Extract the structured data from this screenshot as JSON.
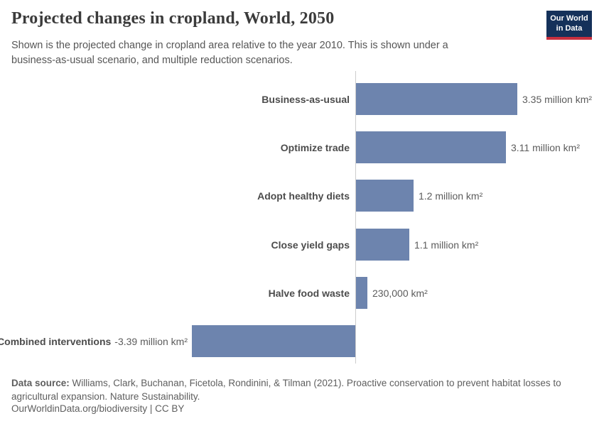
{
  "header": {
    "title": "Projected changes in cropland, World, 2050",
    "subtitle": "Shown is the projected change in cropland area relative to the year 2010. This is shown under a business-as-usual scenario, and multiple reduction scenarios.",
    "logo": {
      "line1": "Our World",
      "line2": "in Data",
      "bg_color": "#15315a",
      "stripe_color": "#c8303f",
      "text_color": "#ffffff"
    }
  },
  "chart_data": {
    "type": "bar",
    "orientation": "horizontal",
    "title": "Projected changes in cropland, World, 2050",
    "unit": "million km²",
    "relative_to_year": "2010",
    "bar_color": "#6d84ae",
    "axis_color": "#cccccc",
    "categories": [
      "Business-as-usual",
      "Optimize trade",
      "Adopt healthy diets",
      "Close yield gaps",
      "Halve food waste",
      "Combined interventions"
    ],
    "values_million_km2": [
      3.35,
      3.11,
      1.2,
      1.1,
      0.23,
      -3.39
    ],
    "value_labels": [
      "3.35 million km²",
      "3.11 million km²",
      "1.2 million km²",
      "1.1 million km²",
      "230,000 km²",
      "-3.39 million km²"
    ],
    "xlim": [
      -3.39,
      3.35
    ],
    "grid": false,
    "legend": "none"
  },
  "footer": {
    "source_label": "Data source:",
    "source_text": " Williams, Clark, Buchanan, Ficetola, Rondinini, & Tilman (2021). Proactive conservation to prevent habitat losses to agricultural expansion. Nature Sustainability.",
    "link": "OurWorldinData.org/biodiversity",
    "separator": " | ",
    "license": "CC BY"
  }
}
